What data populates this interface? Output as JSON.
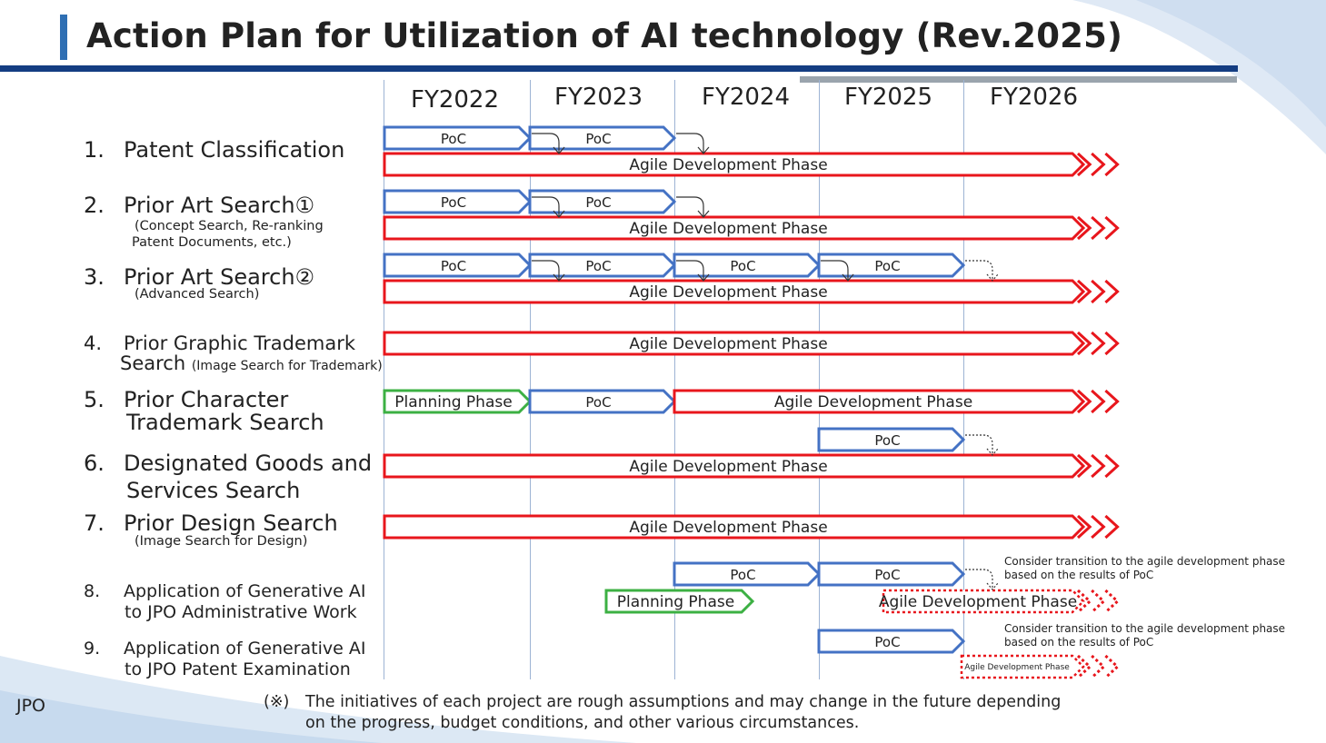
{
  "title": "Action Plan for Utilization of AI technology (Rev.2025)",
  "years": [
    "FY2022",
    "FY2023",
    "FY2024",
    "FY2025",
    "FY2026"
  ],
  "rows": [
    {
      "num": "1.",
      "label": "Patent Classification",
      "sub": ""
    },
    {
      "num": "2.",
      "label": "Prior Art Search①",
      "sub": "(Concept Search, Re-ranking\nPatent Documents, etc.)"
    },
    {
      "num": "3.",
      "label": "Prior Art Search②",
      "sub": "(Advanced Search)"
    },
    {
      "num": "4.",
      "label": "Prior Graphic Trademark",
      "label2": "Search",
      "sub_inline": "(Image Search for Trademark)"
    },
    {
      "num": "5.",
      "label": "Prior Character",
      "label2": "Trademark Search"
    },
    {
      "num": "6.",
      "label": "Designated Goods and",
      "label2": "Services Search"
    },
    {
      "num": "7.",
      "label": "Prior Design Search",
      "sub": "(Image Search for Design)"
    },
    {
      "num": "8.",
      "label": "Application of Generative AI",
      "label2": "to JPO Administrative Work"
    },
    {
      "num": "9.",
      "label": "Application of Generative AI",
      "label2": "to JPO Patent Examination"
    }
  ],
  "bars": [
    {
      "type": "poc",
      "label": "PoC",
      "row": 1,
      "lane": "upper",
      "start": 0,
      "end": 1
    },
    {
      "type": "poc",
      "label": "PoC",
      "row": 1,
      "lane": "upper",
      "start": 1,
      "end": 2
    },
    {
      "type": "agile",
      "label": "Agile Development Phase",
      "row": 1,
      "lane": "lower",
      "start": 0,
      "end": 5
    },
    {
      "type": "poc",
      "label": "PoC",
      "row": 2,
      "lane": "upper",
      "start": 0,
      "end": 1
    },
    {
      "type": "poc",
      "label": "PoC",
      "row": 2,
      "lane": "upper",
      "start": 1,
      "end": 2
    },
    {
      "type": "agile",
      "label": "Agile Development Phase",
      "row": 2,
      "lane": "lower",
      "start": 0,
      "end": 5
    },
    {
      "type": "poc",
      "label": "PoC",
      "row": 3,
      "lane": "upper",
      "start": 0,
      "end": 1
    },
    {
      "type": "poc",
      "label": "PoC",
      "row": 3,
      "lane": "upper",
      "start": 1,
      "end": 2
    },
    {
      "type": "poc",
      "label": "PoC",
      "row": 3,
      "lane": "upper",
      "start": 2,
      "end": 3
    },
    {
      "type": "poc",
      "label": "PoC",
      "row": 3,
      "lane": "upper",
      "start": 3,
      "end": 4
    },
    {
      "type": "agile",
      "label": "Agile Development Phase",
      "row": 3,
      "lane": "lower",
      "start": 0,
      "end": 5
    },
    {
      "type": "agile",
      "label": "Agile Development Phase",
      "row": 4,
      "lane": "single",
      "start": 0,
      "end": 5
    },
    {
      "type": "planning",
      "label": "Planning Phase",
      "row": 5,
      "lane": "single",
      "start": 0,
      "end": 1
    },
    {
      "type": "poc",
      "label": "PoC",
      "row": 5,
      "lane": "single",
      "start": 1,
      "end": 2
    },
    {
      "type": "agile",
      "label": "Agile Development Phase",
      "row": 5,
      "lane": "single",
      "start": 2,
      "end": 5
    },
    {
      "type": "poc",
      "label": "PoC",
      "row": 6,
      "lane": "upper",
      "start": 3,
      "end": 4
    },
    {
      "type": "agile",
      "label": "Agile Development Phase",
      "row": 6,
      "lane": "lower",
      "start": 0,
      "end": 5
    },
    {
      "type": "agile",
      "label": "Agile Development Phase",
      "row": 7,
      "lane": "single",
      "start": 0,
      "end": 5
    },
    {
      "type": "poc",
      "label": "PoC",
      "row": 8,
      "lane": "upper",
      "start": 2,
      "end": 3
    },
    {
      "type": "poc",
      "label": "PoC",
      "row": 8,
      "lane": "upper",
      "start": 3,
      "end": 4
    },
    {
      "type": "planning",
      "label": "Planning Phase",
      "row": 8,
      "lane": "lower",
      "start": 1.5,
      "end": 2.5
    },
    {
      "type": "agile_dashed",
      "label": "Agile Development Phase",
      "row": 8,
      "lane": "lower",
      "start": 3.45,
      "end": 5
    },
    {
      "type": "poc",
      "label": "PoC",
      "row": 9,
      "lane": "upper",
      "start": 3,
      "end": 4
    },
    {
      "type": "agile_dashed",
      "label": "Agile Development Phase",
      "row": 9,
      "lane": "lower",
      "start": 4,
      "end": 5
    }
  ],
  "notes": [
    {
      "row": 8,
      "lines": [
        "Consider transition to the agile development phase",
        "based on the results of PoC"
      ]
    },
    {
      "row": 9,
      "lines": [
        "Consider transition to the agile development phase",
        "based on the results of PoC"
      ]
    }
  ],
  "colors": {
    "poc": "#4472c4",
    "agile": "#e8161c",
    "planning": "#3cb043",
    "title_rule": "#143d82",
    "title_accent": "#2f6fb3"
  },
  "footer": {
    "org": "JPO",
    "note_mark": "(※)",
    "note_line1": "The initiatives of each project are rough assumptions and may change in the future depending",
    "note_line2": "on the progress, budget conditions, and other various circumstances."
  }
}
